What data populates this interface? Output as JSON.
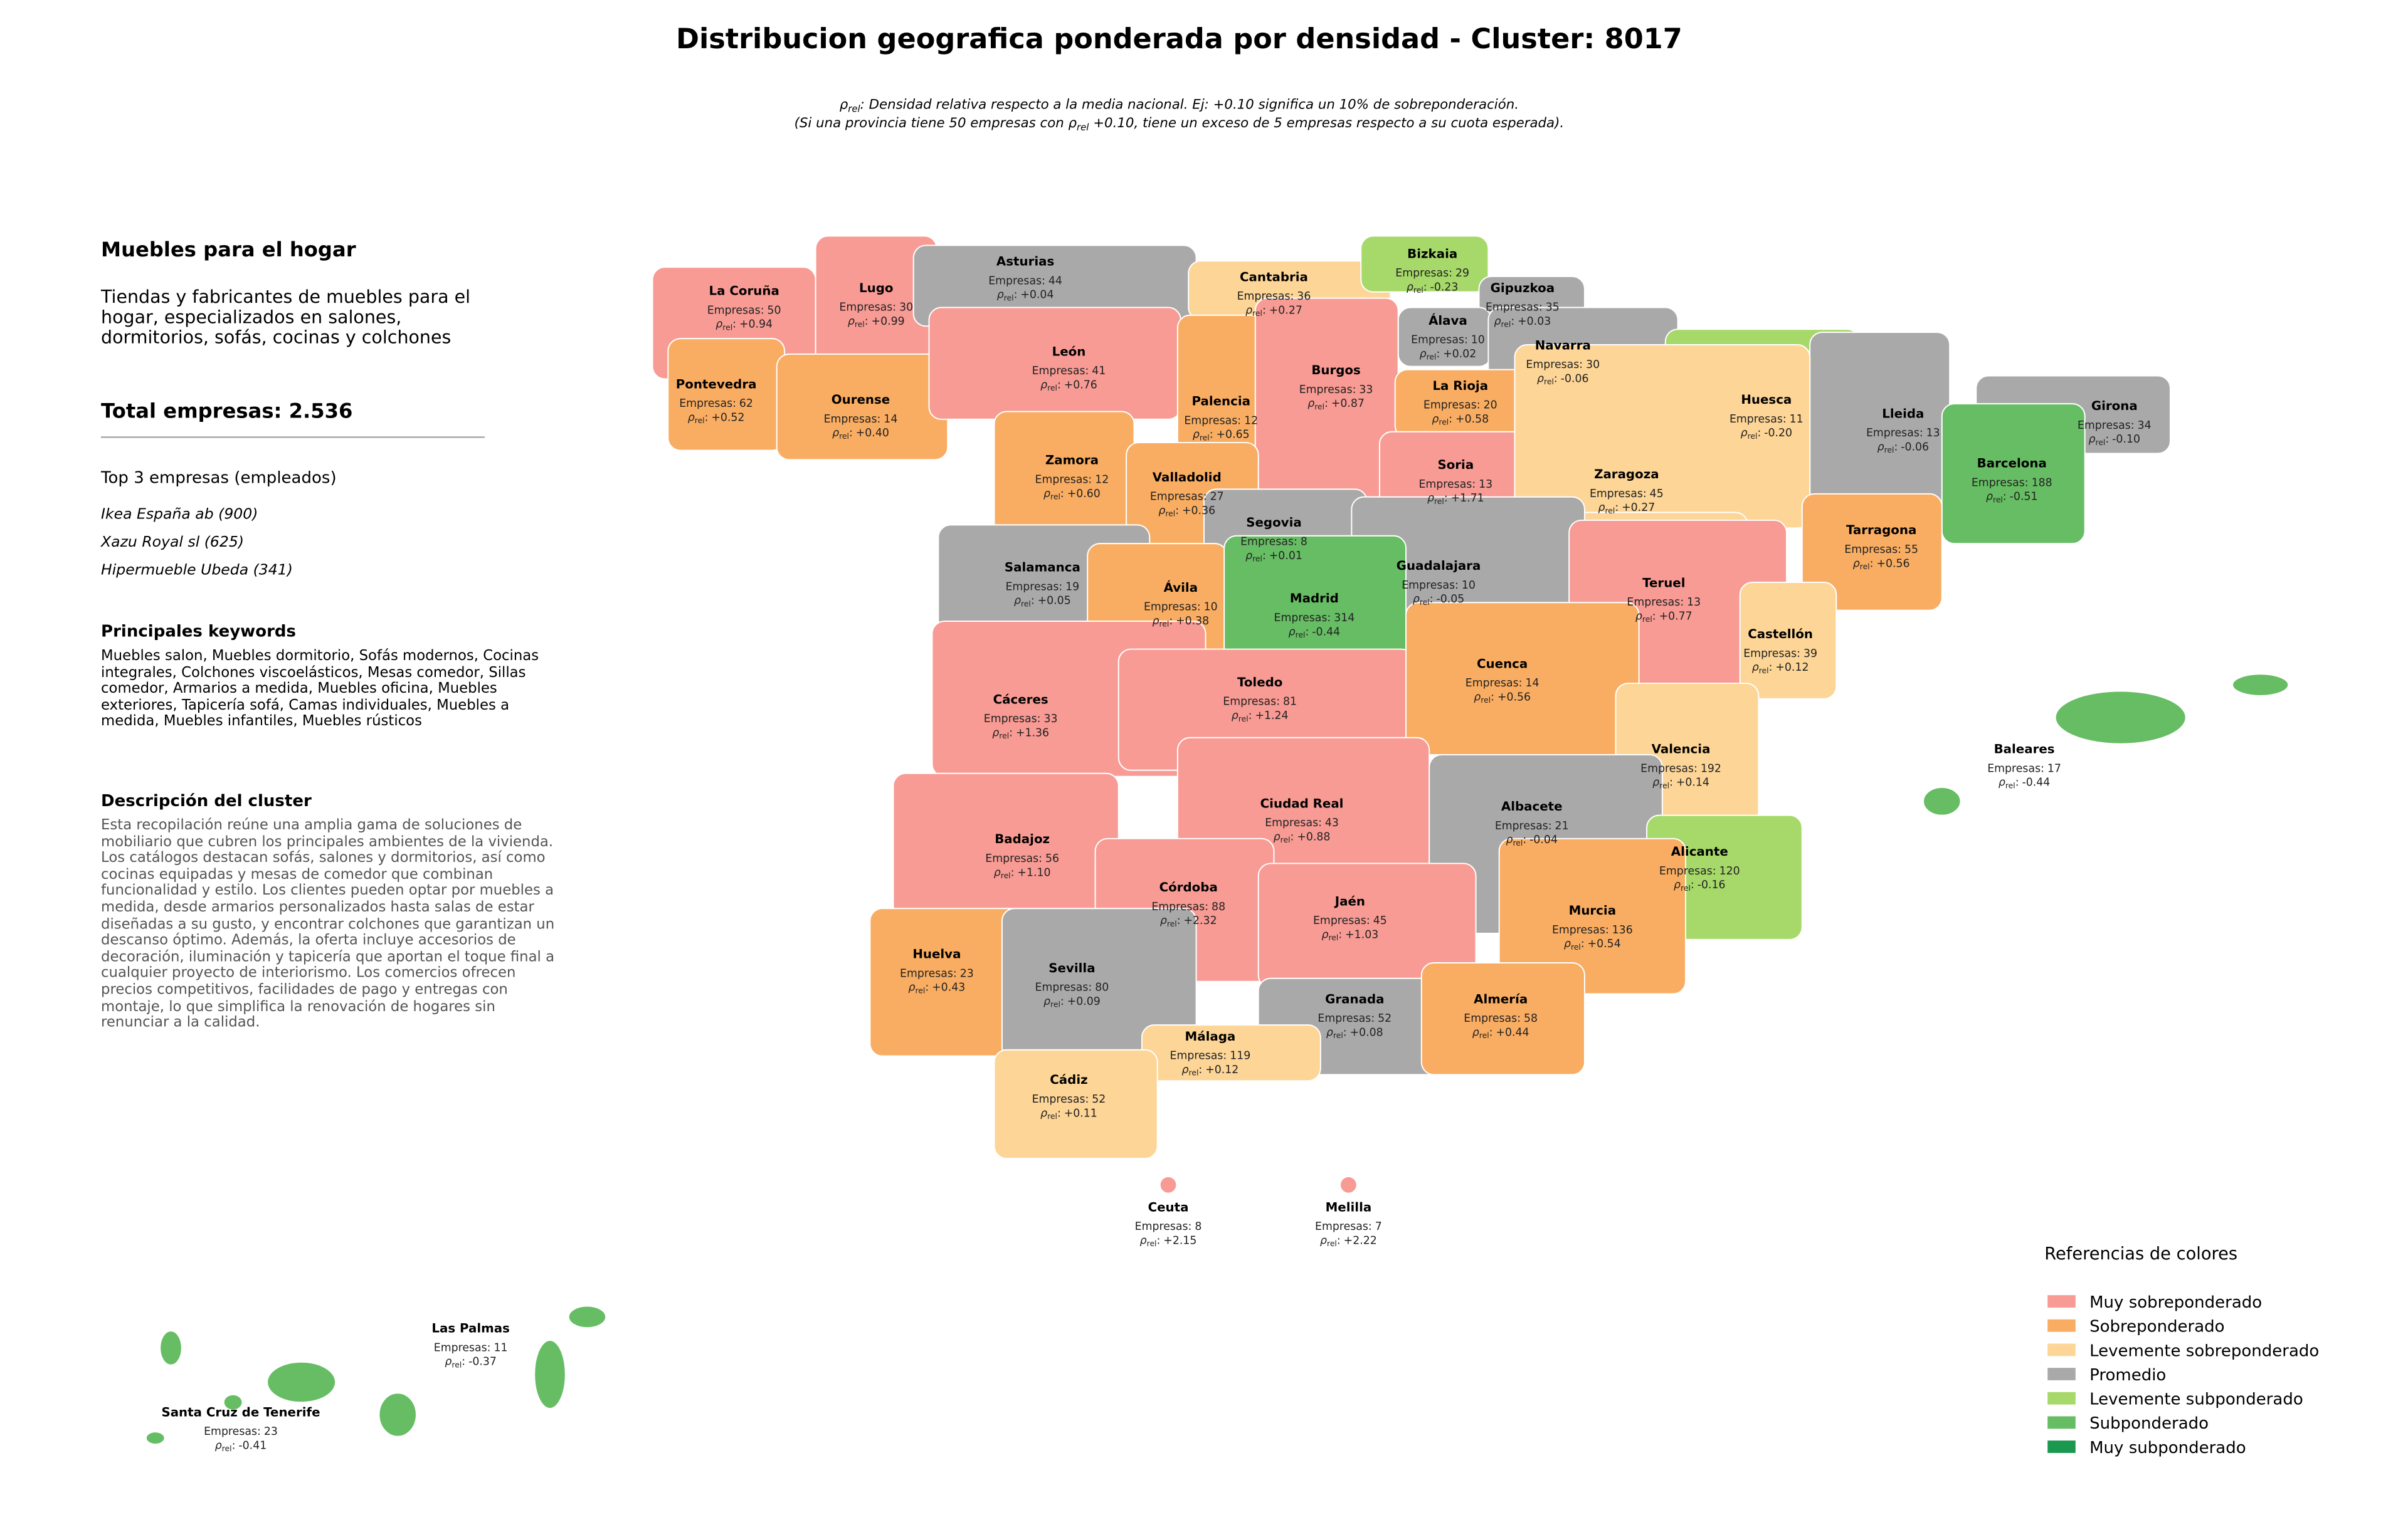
{
  "title": "Distribucion geografica ponderada por densidad - Cluster: 8017",
  "subtitle_lines": [
    [
      "ρ",
      "rel",
      ": Densidad relativa respecto a la media nacional. Ej: +0.10 significa un 10% de sobreponderación."
    ],
    [
      "(Si una provincia tiene 50 empresas con ρ",
      "rel",
      " +0.10, tiene un exceso de 5 empresas respecto a su cuota esperada)."
    ]
  ],
  "panel": {
    "heading": "Muebles para el hogar",
    "summary": "Tiendas y fabricantes de muebles para el hogar, especializados en salones, dormitorios, sofás, cocinas y colchones",
    "total": "Total empresas: 2.536",
    "top_title": "Top 3 empresas (empleados)",
    "top": [
      "Ikea España ab (900)",
      "Xazu Royal sl (625)",
      "Hipermueble Ubeda (341)"
    ],
    "keywords_title": "Principales keywords",
    "keywords": "Muebles salon, Muebles dormitorio, Sofás modernos, Cocinas integrales, Colchones viscoelásticos, Mesas comedor, Sillas comedor, Armarios a medida, Muebles oficina, Muebles exteriores, Tapicería sofá, Camas individuales, Muebles a medida, Muebles infantiles, Muebles rústicos",
    "description_title": "Descripción del cluster",
    "description": "Esta recopilación reúne una amplia gama de soluciones de mobiliario que cubren los principales ambientes de la vivienda. Los catálogos destacan sofás, salones y dormitorios, así como cocinas equipadas y mesas de comedor que combinan funcionalidad y estilo. Los clientes pueden optar por muebles a medida, desde armarios personalizados hasta salas de estar diseñadas a su gusto, y encontrar colchones que garantizan un descanso óptimo. Además, la oferta incluye accesorios de decoración, iluminación y tapicería que aportan el toque final a cualquier proyecto de interiorismo. Los comercios ofrecen precios competitivos, facilidades de pago y entregas con montaje, lo que simplifica la renovación de hogares sin renunciar a la calidad."
  },
  "companies_prefix": "Empresas:",
  "rho_symbol": "ρ",
  "rho_subscript": "rel",
  "rho_separator": ":",
  "provinces": [
    {
      "name": "La Coruña",
      "companies": 50,
      "rho": "+0.94",
      "level": 0
    },
    {
      "name": "Lugo",
      "companies": 30,
      "rho": "+0.99",
      "level": 0
    },
    {
      "name": "Asturias",
      "companies": 44,
      "rho": "+0.04",
      "level": 3
    },
    {
      "name": "Cantabria",
      "companies": 36,
      "rho": "+0.27",
      "level": 2
    },
    {
      "name": "Bizkaia",
      "companies": 29,
      "rho": "-0.23",
      "level": 4
    },
    {
      "name": "Gipuzkoa",
      "companies": 35,
      "rho": "+0.03",
      "level": 3
    },
    {
      "name": "Álava",
      "companies": 10,
      "rho": "+0.02",
      "level": 3
    },
    {
      "name": "Navarra",
      "companies": 30,
      "rho": "-0.06",
      "level": 3
    },
    {
      "name": "Pontevedra",
      "companies": 62,
      "rho": "+0.52",
      "level": 1
    },
    {
      "name": "Ourense",
      "companies": 14,
      "rho": "+0.40",
      "level": 1
    },
    {
      "name": "León",
      "companies": 41,
      "rho": "+0.76",
      "level": 0
    },
    {
      "name": "Palencia",
      "companies": 12,
      "rho": "+0.65",
      "level": 1
    },
    {
      "name": "Burgos",
      "companies": 33,
      "rho": "+0.87",
      "level": 0
    },
    {
      "name": "La Rioja",
      "companies": 20,
      "rho": "+0.58",
      "level": 1
    },
    {
      "name": "Huesca",
      "companies": 11,
      "rho": "-0.20",
      "level": 4
    },
    {
      "name": "Lleida",
      "companies": 13,
      "rho": "-0.06",
      "level": 3
    },
    {
      "name": "Girona",
      "companies": 34,
      "rho": "-0.10",
      "level": 3
    },
    {
      "name": "Barcelona",
      "companies": 188,
      "rho": "-0.51",
      "level": 5
    },
    {
      "name": "Zamora",
      "companies": 12,
      "rho": "+0.60",
      "level": 1
    },
    {
      "name": "Valladolid",
      "companies": 27,
      "rho": "+0.36",
      "level": 1
    },
    {
      "name": "Soria",
      "companies": 13,
      "rho": "+1.71",
      "level": 0
    },
    {
      "name": "Zaragoza",
      "companies": 45,
      "rho": "+0.27",
      "level": 2
    },
    {
      "name": "Tarragona",
      "companies": 55,
      "rho": "+0.56",
      "level": 1
    },
    {
      "name": "Segovia",
      "companies": 8,
      "rho": "+0.01",
      "level": 3
    },
    {
      "name": "Salamanca",
      "companies": 19,
      "rho": "+0.05",
      "level": 3
    },
    {
      "name": "Guadalajara",
      "companies": 10,
      "rho": "-0.05",
      "level": 3
    },
    {
      "name": "Teruel",
      "companies": 13,
      "rho": "+0.77",
      "level": 0
    },
    {
      "name": "Ávila",
      "companies": 10,
      "rho": "+0.38",
      "level": 1
    },
    {
      "name": "Madrid",
      "companies": 314,
      "rho": "-0.44",
      "level": 5
    },
    {
      "name": "Castellón",
      "companies": 39,
      "rho": "+0.12",
      "level": 2
    },
    {
      "name": "Cáceres",
      "companies": 33,
      "rho": "+1.36",
      "level": 0
    },
    {
      "name": "Toledo",
      "companies": 81,
      "rho": "+1.24",
      "level": 0
    },
    {
      "name": "Cuenca",
      "companies": 14,
      "rho": "+0.56",
      "level": 1
    },
    {
      "name": "Valencia",
      "companies": 192,
      "rho": "+0.14",
      "level": 2
    },
    {
      "name": "Ciudad Real",
      "companies": 43,
      "rho": "+0.88",
      "level": 0
    },
    {
      "name": "Albacete",
      "companies": 21,
      "rho": "-0.04",
      "level": 3
    },
    {
      "name": "Badajoz",
      "companies": 56,
      "rho": "+1.10",
      "level": 0
    },
    {
      "name": "Alicante",
      "companies": 120,
      "rho": "-0.16",
      "level": 4
    },
    {
      "name": "Córdoba",
      "companies": 88,
      "rho": "+2.32",
      "level": 0
    },
    {
      "name": "Jaén",
      "companies": 45,
      "rho": "+1.03",
      "level": 0
    },
    {
      "name": "Murcia",
      "companies": 136,
      "rho": "+0.54",
      "level": 1
    },
    {
      "name": "Huelva",
      "companies": 23,
      "rho": "+0.43",
      "level": 1
    },
    {
      "name": "Sevilla",
      "companies": 80,
      "rho": "+0.09",
      "level": 3
    },
    {
      "name": "Granada",
      "companies": 52,
      "rho": "+0.08",
      "level": 3
    },
    {
      "name": "Almería",
      "companies": 58,
      "rho": "+0.44",
      "level": 1
    },
    {
      "name": "Málaga",
      "companies": 119,
      "rho": "+0.12",
      "level": 2
    },
    {
      "name": "Cádiz",
      "companies": 52,
      "rho": "+0.11",
      "level": 2
    },
    {
      "name": "Baleares",
      "companies": 17,
      "rho": "-0.44",
      "level": 5
    },
    {
      "name": "Ceuta",
      "companies": 8,
      "rho": "+2.15",
      "level": 0
    },
    {
      "name": "Melilla",
      "companies": 7,
      "rho": "+2.22",
      "level": 0
    },
    {
      "name": "Las Palmas",
      "companies": 11,
      "rho": "-0.37",
      "level": 5
    },
    {
      "name": "Santa Cruz de Tenerife",
      "companies": 23,
      "rho": "-0.41",
      "level": 5
    }
  ],
  "legend": {
    "title": "Referencias de colores",
    "items": [
      {
        "label": "Muy sobreponderado",
        "color": "#f79b94"
      },
      {
        "label": "Sobreponderado",
        "color": "#f9ad62"
      },
      {
        "label": "Levemente sobreponderado",
        "color": "#fdd596"
      },
      {
        "label": "Promedio",
        "color": "#a9a9a9"
      },
      {
        "label": "Levemente subponderado",
        "color": "#a6d96a"
      },
      {
        "label": "Subponderado",
        "color": "#66bd63"
      },
      {
        "label": "Muy subponderado",
        "color": "#1a9850"
      }
    ]
  }
}
